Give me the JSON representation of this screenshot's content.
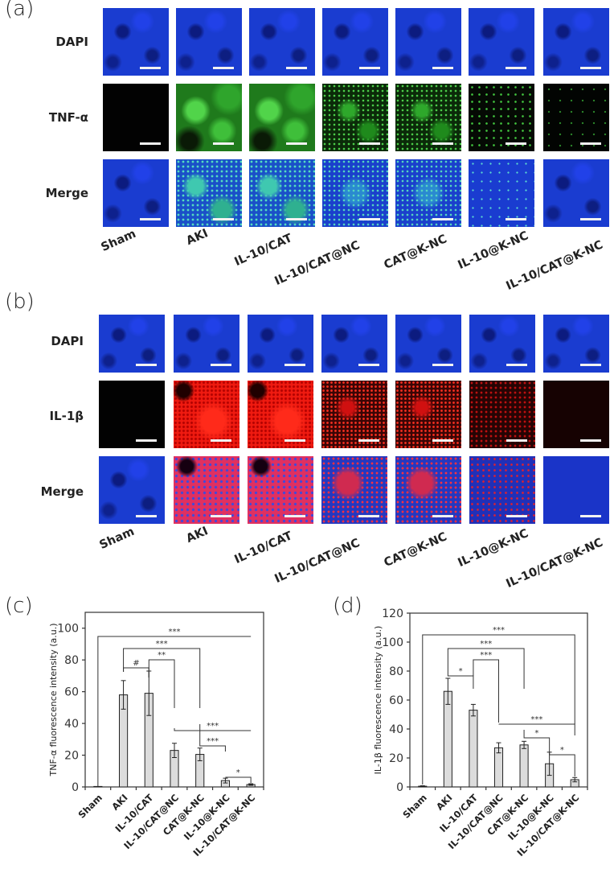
{
  "panels": {
    "a": {
      "letter": "(a)",
      "rows": [
        "DAPI",
        "TNF-α",
        "Merge"
      ],
      "columns": [
        "Sham",
        "AKI",
        "IL-10/CAT",
        "IL-10/CAT@NC",
        "CAT@K-NC",
        "IL-10@K-NC",
        "IL-10/CAT@K-NC"
      ],
      "marker_color": "#3fbf3a",
      "nucleus_color": "#1a3cd0"
    },
    "b": {
      "letter": "(b)",
      "rows": [
        "DAPI",
        "IL-1β",
        "Merge"
      ],
      "columns": [
        "Sham",
        "AKI",
        "IL-10/CAT",
        "IL-10/CAT@NC",
        "CAT@K-NC",
        "IL-10@K-NC",
        "IL-10/CAT@K-NC"
      ],
      "marker_color": "#f01a10",
      "nucleus_color": "#1a3cd0"
    },
    "c": {
      "letter": "(c)"
    },
    "d": {
      "letter": "(d)"
    }
  },
  "chart_data": [
    {
      "type": "bar",
      "panel": "(c)",
      "title": "",
      "xlabel": "",
      "ylabel": "TNF-α fluorescence intensity (a.u.)",
      "categories": [
        "Sham",
        "AKI",
        "IL-10/CAT",
        "IL-10/CAT@NC",
        "CAT@K-NC",
        "IL-10@K-NC",
        "IL-10/CAT@K-NC"
      ],
      "values": [
        0.3,
        58,
        59,
        23,
        20.5,
        4,
        1.5
      ],
      "errors": [
        0.1,
        9,
        14,
        4.5,
        4,
        1.5,
        0.5
      ],
      "ylim": [
        0,
        110
      ],
      "yticks": [
        0,
        20,
        40,
        60,
        80,
        100
      ],
      "bar_color": "#dcdcdc",
      "grid": false,
      "significance": [
        {
          "from": "Sham",
          "to": "IL-10/CAT@K-NC",
          "label": "***"
        },
        {
          "from": "AKI",
          "to": "CAT@K-NC",
          "label": "***"
        },
        {
          "from": "AKI",
          "to": "IL-10/CAT",
          "label": "#"
        },
        {
          "from": "IL-10/CAT",
          "to": "IL-10/CAT@NC",
          "label": "**"
        },
        {
          "from": "IL-10/CAT@NC",
          "to": "IL-10/CAT@K-NC",
          "label": "***"
        },
        {
          "from": "CAT@K-NC",
          "to": "IL-10@K-NC",
          "label": "***"
        },
        {
          "from": "IL-10@K-NC",
          "to": "IL-10/CAT@K-NC",
          "label": "*"
        }
      ]
    },
    {
      "type": "bar",
      "panel": "(d)",
      "title": "",
      "xlabel": "",
      "ylabel": "IL-1β fluorescence intensity (a.u.)",
      "categories": [
        "Sham",
        "AKI",
        "IL-10/CAT",
        "IL-10/CAT@NC",
        "CAT@K-NC",
        "IL-10@K-NC",
        "IL-10/CAT@K-NC"
      ],
      "values": [
        0.5,
        66,
        53,
        27,
        29,
        16,
        5
      ],
      "errors": [
        0.3,
        9,
        4,
        3.5,
        2.5,
        8,
        1.5
      ],
      "ylim": [
        0,
        120
      ],
      "yticks": [
        0,
        20,
        40,
        60,
        80,
        100,
        120
      ],
      "bar_color": "#dcdcdc",
      "grid": false,
      "significance": [
        {
          "from": "Sham",
          "to": "IL-10/CAT@K-NC",
          "label": "***"
        },
        {
          "from": "AKI",
          "to": "CAT@K-NC",
          "label": "***"
        },
        {
          "from": "AKI",
          "to": "IL-10/CAT",
          "label": "*"
        },
        {
          "from": "IL-10/CAT",
          "to": "IL-10/CAT@NC",
          "label": "***"
        },
        {
          "from": "IL-10/CAT@NC",
          "to": "IL-10/CAT@K-NC",
          "label": "***"
        },
        {
          "from": "CAT@K-NC",
          "to": "IL-10@K-NC",
          "label": "*"
        },
        {
          "from": "IL-10@K-NC",
          "to": "IL-10/CAT@K-NC",
          "label": "*"
        }
      ]
    }
  ]
}
